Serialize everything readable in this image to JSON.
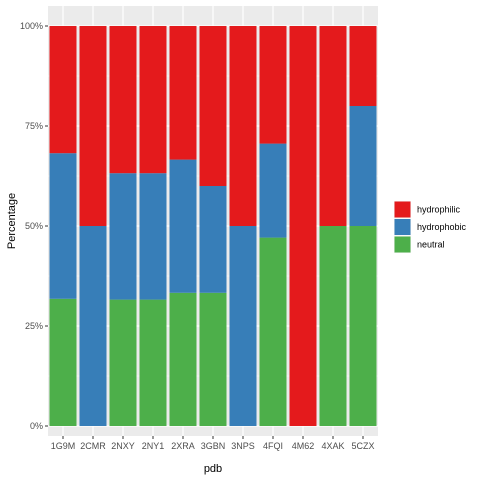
{
  "chart_data": {
    "type": "bar",
    "stacked": true,
    "xlabel": "pdb",
    "ylabel": "Percentage",
    "ylim": [
      0,
      100
    ],
    "y_ticks": [
      0,
      25,
      50,
      75,
      100
    ],
    "y_tick_labels": [
      "0%",
      "25%",
      "50%",
      "75%",
      "100%"
    ],
    "grid": true,
    "legend_position": "right",
    "categories": [
      "1G9M",
      "2CMR",
      "2NXY",
      "2NY1",
      "2XRA",
      "3GBN",
      "3NPS",
      "4FQI",
      "4M62",
      "4XAK",
      "5CZX"
    ],
    "series": [
      {
        "name": "neutral",
        "color": "#4DAF4A",
        "values": [
          31.8,
          0,
          31.6,
          31.6,
          33.3,
          33.3,
          0,
          47.1,
          0,
          50,
          50
        ]
      },
      {
        "name": "hydrophobic",
        "color": "#377EB8",
        "values": [
          36.4,
          50,
          31.6,
          31.6,
          33.3,
          26.7,
          50,
          23.5,
          0,
          0,
          30
        ]
      },
      {
        "name": "hydrophilic",
        "color": "#E41A1C",
        "values": [
          31.8,
          50,
          36.8,
          36.8,
          33.4,
          40,
          50,
          29.4,
          100,
          50,
          20
        ]
      }
    ],
    "legend_order": [
      "hydrophilic",
      "hydrophobic",
      "neutral"
    ]
  }
}
